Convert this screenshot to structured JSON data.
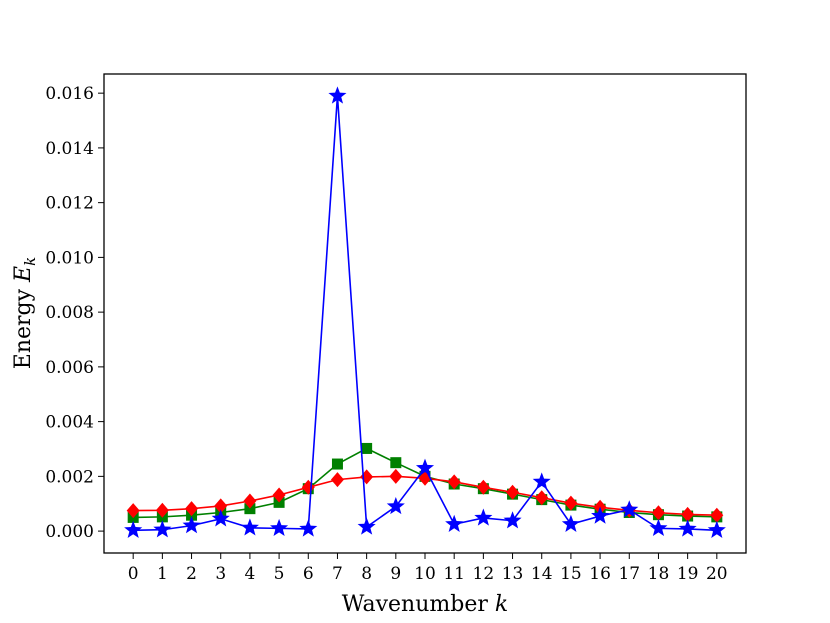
{
  "chart_data": {
    "type": "line",
    "title": "",
    "xlabel": "Wavenumber",
    "xlabel_symbol": "k",
    "ylabel": "Energy",
    "ylabel_symbol": "E",
    "ylabel_subscript": "k",
    "xlim": [
      -1,
      21
    ],
    "ylim": [
      -0.0008,
      0.0167
    ],
    "x": [
      0,
      1,
      2,
      3,
      4,
      5,
      6,
      7,
      8,
      9,
      10,
      11,
      12,
      13,
      14,
      15,
      16,
      17,
      18,
      19,
      20
    ],
    "x_tick_labels": [
      "0",
      "1",
      "2",
      "3",
      "4",
      "5",
      "6",
      "7",
      "8",
      "9",
      "10",
      "11",
      "12",
      "13",
      "14",
      "15",
      "16",
      "17",
      "18",
      "19",
      "20"
    ],
    "y_ticks": [
      0.0,
      0.002,
      0.004,
      0.006,
      0.008,
      0.01,
      0.012,
      0.014,
      0.016
    ],
    "y_tick_labels": [
      "0.000",
      "0.002",
      "0.004",
      "0.006",
      "0.008",
      "0.010",
      "0.012",
      "0.014",
      "0.016"
    ],
    "grid": false,
    "series": [
      {
        "color": "#008000",
        "marker": "square",
        "values": [
          0.0005,
          0.00052,
          0.00058,
          0.00068,
          0.00082,
          0.00105,
          0.00155,
          0.00245,
          0.00302,
          0.0025,
          0.002,
          0.00172,
          0.00155,
          0.00135,
          0.00115,
          0.00095,
          0.0008,
          0.00068,
          0.0006,
          0.00055,
          0.00052
        ]
      },
      {
        "color": "#ff0000",
        "marker": "diamond",
        "values": [
          0.00075,
          0.00076,
          0.00082,
          0.00092,
          0.0011,
          0.00132,
          0.0016,
          0.00188,
          0.00198,
          0.002,
          0.00193,
          0.0018,
          0.0016,
          0.00142,
          0.00122,
          0.00102,
          0.00087,
          0.00076,
          0.00067,
          0.00061,
          0.00058
        ]
      },
      {
        "color": "#0000ff",
        "marker": "star",
        "values": [
          3e-05,
          5e-05,
          0.0002,
          0.00045,
          0.00012,
          0.0001,
          8e-05,
          0.0159,
          0.00015,
          0.0009,
          0.0023,
          0.00025,
          0.00048,
          0.00038,
          0.0018,
          0.00025,
          0.00055,
          0.00078,
          0.0001,
          8e-05,
          3e-05
        ]
      }
    ]
  }
}
